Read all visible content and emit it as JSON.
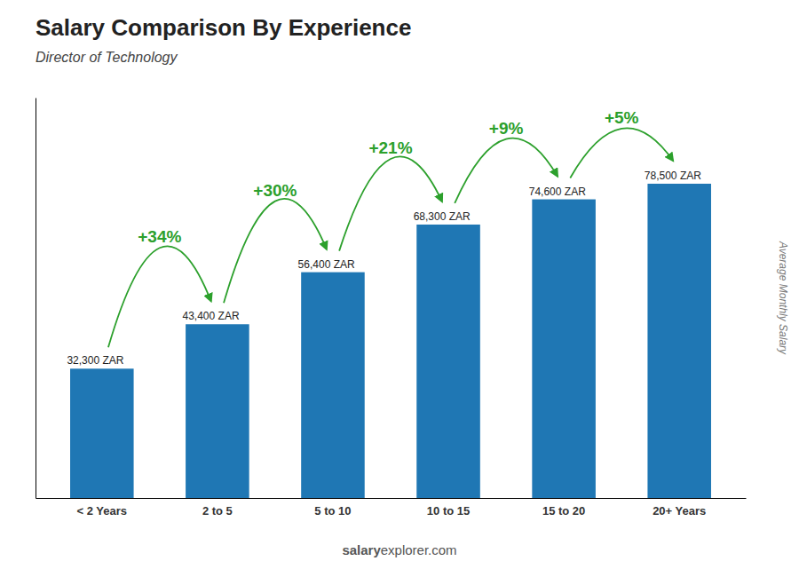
{
  "chart_data": {
    "type": "bar",
    "title": "Salary Comparison By Experience",
    "subtitle": "Director of Technology",
    "ylabel": "Average Monthly Salary",
    "watermark": {
      "bold": "salary",
      "normal": "explorer.com"
    },
    "categories": [
      "< 2 Years",
      "2 to 5",
      "5 to 10",
      "10 to 15",
      "15 to 20",
      "20+ Years"
    ],
    "values": [
      32300,
      43400,
      56400,
      68300,
      74600,
      78500
    ],
    "value_labels": [
      "32,300 ZAR",
      "43,400 ZAR",
      "56,400 ZAR",
      "68,300 ZAR",
      "74,600 ZAR",
      "78,500 ZAR"
    ],
    "data_labels": true,
    "pct_changes": [
      {
        "value": 34,
        "label": "+34%"
      },
      {
        "value": 30,
        "label": "+30%"
      },
      {
        "value": 21,
        "label": "+21%"
      },
      {
        "value": 9,
        "label": "+9%"
      },
      {
        "value": 5,
        "label": "+5%"
      }
    ],
    "ylim": [
      0,
      100000
    ],
    "tick_labels": "x",
    "grid": false
  }
}
